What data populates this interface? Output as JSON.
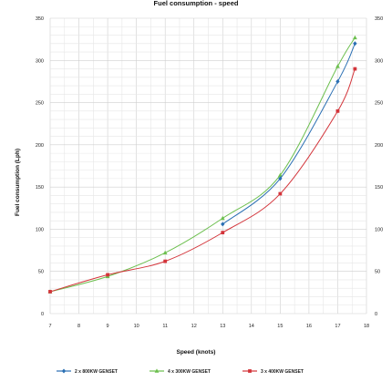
{
  "chart_data": {
    "type": "line",
    "title": "Fuel consumption - speed",
    "xlabel": "Speed (knots)",
    "ylabel": "Fuel consumption (Lph)",
    "xlim": [
      7,
      18
    ],
    "ylim": [
      0,
      350
    ],
    "x_ticks": [
      "7",
      "8",
      "9",
      "10",
      "11",
      "12",
      "13",
      "14",
      "15",
      "16",
      "17",
      "18"
    ],
    "y_ticks": [
      "0",
      "50",
      "100",
      "150",
      "200",
      "250",
      "300",
      "350"
    ],
    "grid": true,
    "legend_position": "bottom",
    "series": [
      {
        "name": "2 x 800KW GENSET",
        "color": "#2a6fb3",
        "marker": "diamond",
        "points": [
          [
            13,
            106
          ],
          [
            15,
            160
          ],
          [
            17,
            275
          ],
          [
            17.6,
            320
          ]
        ]
      },
      {
        "name": "4 x 300KW GENSET",
        "color": "#6cbf4e",
        "marker": "triangle",
        "points": [
          [
            7,
            26
          ],
          [
            9,
            44
          ],
          [
            11,
            72
          ],
          [
            13,
            113
          ],
          [
            15,
            164
          ],
          [
            17,
            293
          ],
          [
            17.6,
            327
          ]
        ]
      },
      {
        "name": "3 x 400KW GENSET",
        "color": "#d3343a",
        "marker": "square",
        "points": [
          [
            7,
            26
          ],
          [
            9,
            46
          ],
          [
            11,
            62
          ],
          [
            13,
            96
          ],
          [
            15,
            142
          ],
          [
            17,
            240
          ],
          [
            17.6,
            290
          ]
        ]
      }
    ]
  }
}
